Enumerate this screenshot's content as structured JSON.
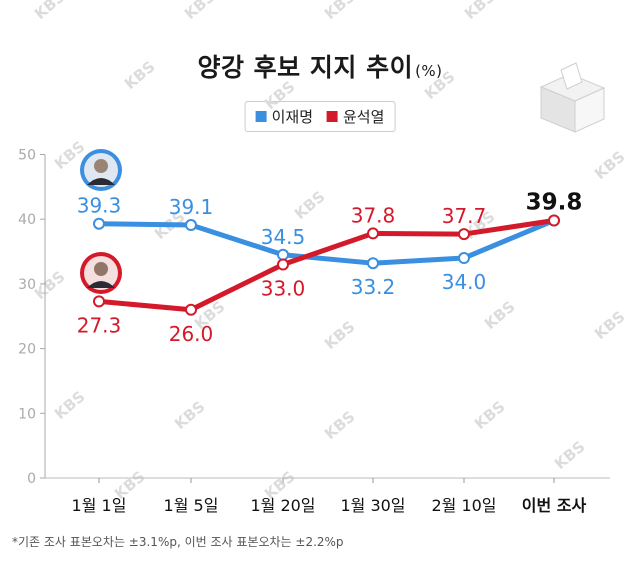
{
  "title": "양강 후보 지지 추이",
  "title_unit": "(%)",
  "footnote": "*기존 조사 표본오차는 ±3.1%p, 이번 조사 표본오차는 ±2.2%p",
  "watermark": "KBS",
  "colors": {
    "lee": "#3a8fe0",
    "yoon": "#d41a2a",
    "axis": "#999999",
    "text": "#222222"
  },
  "chart_data": {
    "type": "line",
    "categories": [
      "1월 1일",
      "1월 5일",
      "1월 20일",
      "1월 30일",
      "2월 10일",
      "이번 조사"
    ],
    "series": [
      {
        "name": "이재명",
        "color": "#3a8fe0",
        "values": [
          39.3,
          39.1,
          34.5,
          33.2,
          34.0,
          39.8
        ]
      },
      {
        "name": "윤석열",
        "color": "#d41a2a",
        "values": [
          27.3,
          26.0,
          33.0,
          37.8,
          37.7,
          39.8
        ]
      }
    ],
    "labels": {
      "이재명": [
        "39.3",
        "39.1",
        "34.5",
        "33.2",
        "34.0",
        "39.8"
      ],
      "윤석열": [
        "27.3",
        "26.0",
        "33.0",
        "37.8",
        "37.7",
        ""
      ]
    },
    "yticks": [
      0,
      10,
      20,
      30,
      40,
      50
    ],
    "ylim": [
      0,
      50
    ],
    "grid": false,
    "legend_position": "top-center"
  }
}
